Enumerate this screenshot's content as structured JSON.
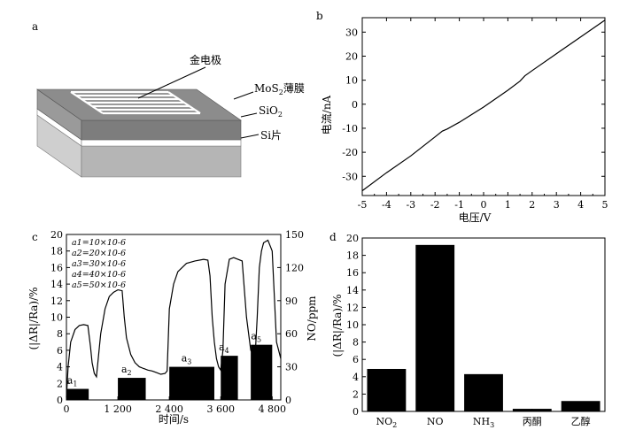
{
  "panel_a": {
    "letter": "a",
    "label_electrode": "金电极",
    "label_mos2_prefix": "MoS",
    "label_mos2_sub": "2",
    "label_mos2_suffix": "薄膜",
    "label_sio2_prefix": "SiO",
    "label_sio2_sub": "2",
    "label_si": "Si片"
  },
  "chart_data": [
    {
      "id": "b",
      "letter": "b",
      "type": "line",
      "xlabel": "电压/V",
      "ylabel": "电流/nA",
      "xlim": [
        -5,
        5
      ],
      "ylim": [
        -38,
        36
      ],
      "xticks": [
        -5,
        -4,
        -3,
        -2,
        -1,
        0,
        1,
        2,
        3,
        4,
        5
      ],
      "yticks": [
        -30,
        -20,
        -10,
        0,
        10,
        20,
        30
      ],
      "x": [
        -5,
        -4,
        -3,
        -2,
        -1.7,
        -1.5,
        -1,
        0,
        1,
        1.5,
        1.7,
        2,
        3,
        4,
        5
      ],
      "y": [
        -36,
        -28.5,
        -21.5,
        -13.6,
        -11.2,
        -10.3,
        -7.5,
        -1.2,
        5.8,
        9.6,
        11.8,
        14,
        21,
        28,
        35
      ]
    },
    {
      "id": "c",
      "letter": "c",
      "type": "line+bar",
      "xlabel": "时间/s",
      "ylabel_left": "(|ΔR|/Ra)/%",
      "ylabel_right": "NO/ppm",
      "xlim": [
        0,
        5000
      ],
      "ylim_left": [
        0,
        20
      ],
      "ylim_right": [
        0,
        150
      ],
      "xticks": [
        0,
        1200,
        2400,
        3600,
        4800
      ],
      "xtick_labels": [
        "0",
        "1 200",
        "2 400",
        "3 600",
        "4 800"
      ],
      "yticks_left": [
        0,
        2,
        4,
        6,
        8,
        10,
        12,
        14,
        16,
        18,
        20
      ],
      "yticks_right": [
        0,
        30,
        60,
        90,
        120,
        150
      ],
      "legend": [
        "a1=10×10-6",
        "a2=20×10-6",
        "a3=30×10-6",
        "a4=40×10-6",
        "a5=50×10-6"
      ],
      "response": {
        "x": [
          0,
          40,
          100,
          200,
          300,
          400,
          500,
          560,
          600,
          650,
          700,
          800,
          900,
          1000,
          1100,
          1200,
          1300,
          1350,
          1400,
          1500,
          1600,
          1700,
          1800,
          1900,
          2000,
          2100,
          2200,
          2300,
          2350,
          2400,
          2500,
          2600,
          2800,
          3000,
          3200,
          3300,
          3350,
          3400,
          3450,
          3500,
          3550,
          3600,
          3650,
          3700,
          3800,
          3900,
          4000,
          4100,
          4200,
          4300,
          4400,
          4450,
          4500,
          4550,
          4600,
          4700,
          4800,
          4900,
          5000
        ],
        "y": [
          0.3,
          4,
          7,
          8.5,
          9,
          9.1,
          9.0,
          6.5,
          4.5,
          3.2,
          2.8,
          8,
          11,
          12.5,
          13,
          13.3,
          13.2,
          10,
          7.5,
          5.5,
          4.5,
          4,
          3.8,
          3.6,
          3.5,
          3.3,
          3.1,
          3.2,
          3.5,
          11,
          14,
          15.5,
          16.5,
          16.8,
          17,
          16.9,
          15,
          10,
          7,
          5,
          4,
          3.6,
          6,
          14,
          17,
          17.2,
          17,
          16.8,
          10,
          6,
          5.2,
          10,
          16,
          18,
          19,
          19.3,
          18,
          7,
          5
        ]
      },
      "bars": [
        {
          "label": "a1",
          "start": 0,
          "end": 520,
          "ppm": 10
        },
        {
          "label": "a2",
          "start": 1200,
          "end": 1850,
          "ppm": 20
        },
        {
          "label": "a3",
          "start": 2400,
          "end": 3450,
          "ppm": 30
        },
        {
          "label": "a4",
          "start": 3600,
          "end": 4000,
          "ppm": 40
        },
        {
          "label": "a5",
          "start": 4300,
          "end": 4800,
          "ppm": 50
        }
      ]
    },
    {
      "id": "d",
      "letter": "d",
      "type": "bar",
      "ylabel": "(|ΔR|/Ra)/%",
      "ylim": [
        0,
        20
      ],
      "yticks": [
        0,
        2,
        4,
        6,
        8,
        10,
        12,
        14,
        16,
        18,
        20
      ],
      "categories": [
        "NO2",
        "NO",
        "NH3",
        "丙酮",
        "乙醇"
      ],
      "values": [
        4.9,
        19.2,
        4.3,
        0.3,
        1.2
      ]
    }
  ]
}
